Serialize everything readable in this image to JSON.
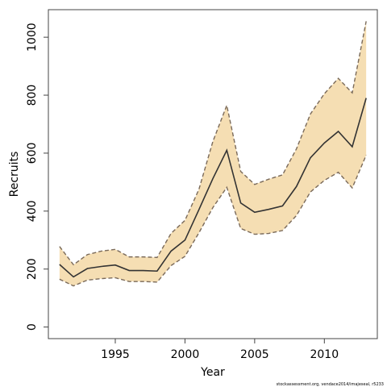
{
  "chart_data": {
    "type": "line",
    "xlabel": "Year",
    "ylabel": "Recruits",
    "footnote": "stockassessment.org, vendace2014/imajeseal, r5233",
    "xlim": [
      1990.2,
      2013.8
    ],
    "ylim": [
      -40,
      1095
    ],
    "x_ticks": [
      1995,
      2000,
      2005,
      2010
    ],
    "y_ticks": [
      0,
      200,
      400,
      600,
      800,
      1000
    ],
    "grid": false,
    "colors": {
      "band_fill": "#f5deb3",
      "estimate_line": "#333333",
      "bound_line": "#7a6a5a",
      "frame": "#444444"
    },
    "x": [
      1991,
      1992,
      1993,
      1994,
      1995,
      1996,
      1997,
      1998,
      1999,
      2000,
      2001,
      2002,
      2003,
      2004,
      2005,
      2006,
      2007,
      2008,
      2009,
      2010,
      2011,
      2012,
      2013
    ],
    "series": [
      {
        "name": "",
        "role": "estimate",
        "values": [
          216,
          173,
          202,
          209,
          214,
          195,
          195,
          193,
          262,
          300,
          405,
          512,
          610,
          428,
          396,
          406,
          418,
          485,
          584,
          635,
          675,
          622,
          790
        ]
      },
      {
        "name": "",
        "role": "upper",
        "values": [
          278,
          215,
          250,
          262,
          268,
          242,
          242,
          240,
          323,
          368,
          475,
          640,
          765,
          537,
          492,
          510,
          525,
          615,
          735,
          805,
          858,
          808,
          1055
        ]
      },
      {
        "name": "",
        "role": "lower",
        "values": [
          165,
          142,
          162,
          167,
          170,
          157,
          157,
          155,
          212,
          244,
          325,
          412,
          482,
          340,
          320,
          323,
          333,
          385,
          466,
          506,
          534,
          480,
          593
        ]
      }
    ]
  }
}
